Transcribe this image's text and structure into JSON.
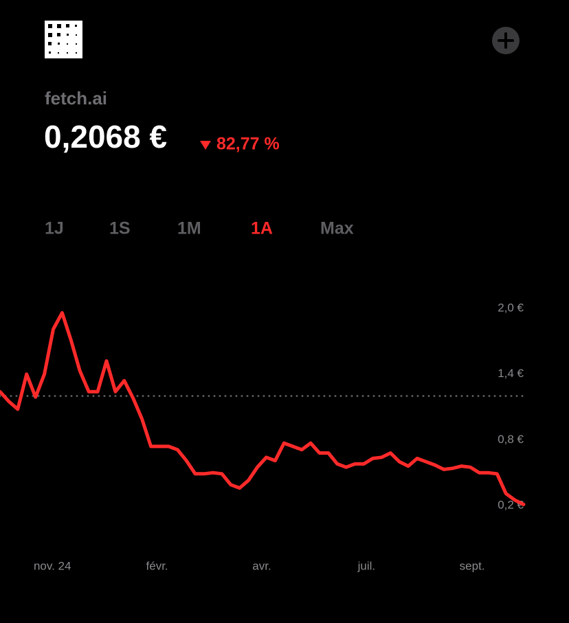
{
  "header": {
    "name": "fetch.ai",
    "price": "0,2068 €",
    "change": "82,77 %"
  },
  "ranges": [
    "1J",
    "1S",
    "1M",
    "1A",
    "Max"
  ],
  "active_range": 3,
  "chart_data": {
    "type": "line",
    "x": [
      0,
      1,
      2,
      3,
      4,
      5,
      6,
      7,
      8,
      9,
      10,
      11,
      12,
      13,
      14,
      15,
      16,
      17,
      18,
      19,
      20,
      21,
      22,
      23,
      24,
      25,
      26,
      27,
      28,
      29,
      30,
      31,
      32,
      33,
      34,
      35,
      36,
      37,
      38,
      39,
      40,
      41,
      42,
      43,
      44,
      45,
      46,
      47,
      48,
      49,
      50,
      51,
      52,
      53,
      54,
      55,
      56,
      57,
      58,
      59
    ],
    "values": [
      1.24,
      1.15,
      1.08,
      1.4,
      1.19,
      1.4,
      1.81,
      1.96,
      1.71,
      1.43,
      1.24,
      1.24,
      1.52,
      1.24,
      1.34,
      1.18,
      0.99,
      0.74,
      0.74,
      0.74,
      0.71,
      0.61,
      0.49,
      0.49,
      0.5,
      0.49,
      0.39,
      0.36,
      0.43,
      0.55,
      0.64,
      0.61,
      0.77,
      0.74,
      0.71,
      0.77,
      0.68,
      0.68,
      0.58,
      0.55,
      0.58,
      0.58,
      0.63,
      0.64,
      0.68,
      0.6,
      0.56,
      0.63,
      0.6,
      0.57,
      0.53,
      0.54,
      0.56,
      0.55,
      0.5,
      0.5,
      0.49,
      0.31,
      0.25,
      0.21
    ],
    "color": "#ff2a2a",
    "xlim": [
      0,
      59
    ],
    "xticks": [
      {
        "value": 5.9,
        "label": "nov. 24"
      },
      {
        "value": 17.7,
        "label": "févr."
      },
      {
        "value": 29.5,
        "label": "avr."
      },
      {
        "value": 41.3,
        "label": "juil."
      },
      {
        "value": 53.2,
        "label": "sept."
      }
    ],
    "ylim": [
      0.2,
      2.0
    ],
    "yticks": [
      {
        "value": 2.0,
        "label": "2,0 €"
      },
      {
        "value": 1.4,
        "label": "1,4 €"
      },
      {
        "value": 0.8,
        "label": "0,8 €"
      },
      {
        "value": 0.2,
        "label": "0,2 €"
      }
    ],
    "reference_line": 1.2,
    "grid": false
  }
}
